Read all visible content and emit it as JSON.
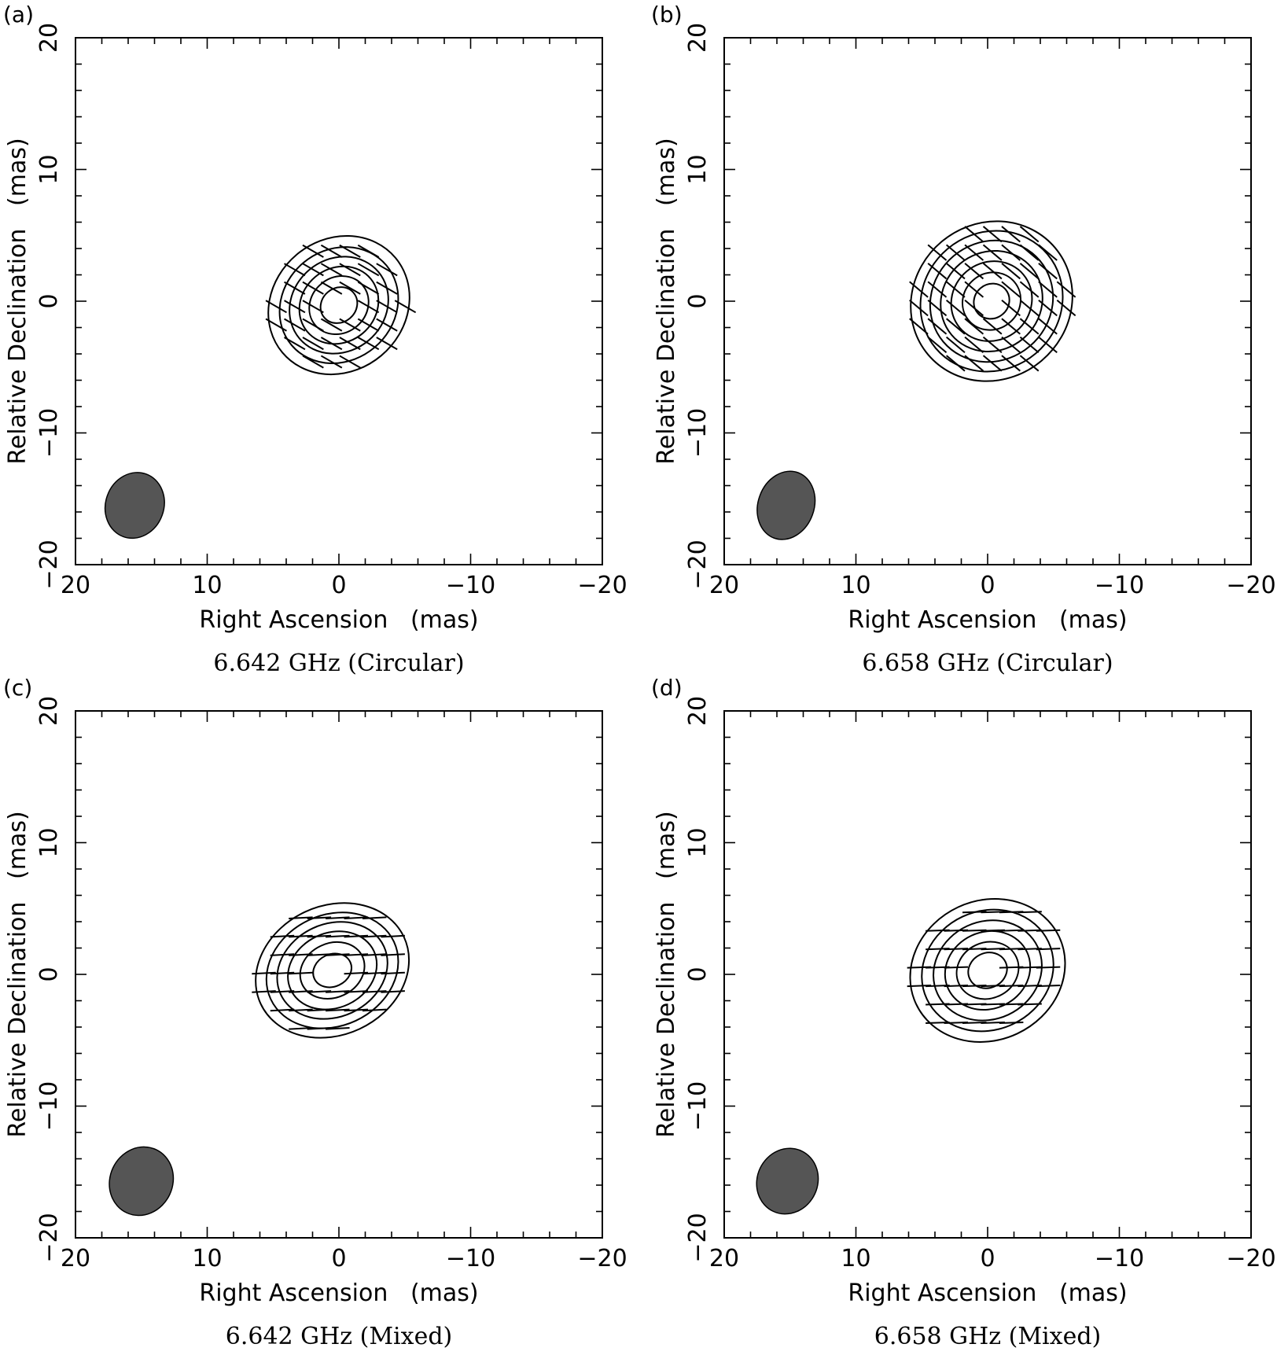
{
  "chart_data": [
    {
      "type": "contour",
      "panel": "(a)",
      "caption": "6.642 GHz (Circular)",
      "xlabel": "Right Ascension   (mas)",
      "ylabel": "Relative Declination   (mas)",
      "xlim": [
        20,
        -20
      ],
      "ylim": [
        -20,
        20
      ],
      "xticks": [
        20,
        10,
        0,
        -10,
        -20
      ],
      "yticks": [
        -20,
        -10,
        0,
        10,
        20
      ],
      "xtick_labels": [
        "20",
        "10",
        "0",
        "−10",
        "−20"
      ],
      "ytick_labels": [
        "−20",
        "−10",
        "0",
        "10",
        "20"
      ],
      "source": {
        "x": 0,
        "y": -0.3,
        "a": 5.6,
        "b": 5.0,
        "pa": -40
      },
      "contour_scales": [
        0.26,
        0.42,
        0.56,
        0.7,
        0.84,
        1.0
      ],
      "vector_angle_deg": -30,
      "beam": {
        "x": 15.5,
        "y": -15.5,
        "a": 2.6,
        "b": 2.2,
        "pa": 20,
        "color": "#555555"
      }
    },
    {
      "type": "contour",
      "panel": "(b)",
      "caption": "6.658 GHz (Circular)",
      "xlabel": "Right Ascension   (mas)",
      "ylabel": "Relative Declination   (mas)",
      "xlim": [
        20,
        -20
      ],
      "ylim": [
        -20,
        20
      ],
      "xticks": [
        20,
        10,
        0,
        -10,
        -20
      ],
      "yticks": [
        -20,
        -10,
        0,
        10,
        20
      ],
      "xtick_labels": [
        "20",
        "10",
        "0",
        "−10",
        "−20"
      ],
      "ytick_labels": [
        "−20",
        "−10",
        "0",
        "10",
        "20"
      ],
      "source": {
        "x": -0.3,
        "y": 0,
        "a": 6.3,
        "b": 5.9,
        "pa": -40
      },
      "contour_scales": [
        0.22,
        0.36,
        0.5,
        0.63,
        0.76,
        0.88,
        1.0
      ],
      "vector_angle_deg": -40,
      "beam": {
        "x": 15.3,
        "y": -15.5,
        "a": 2.5,
        "b": 2.3,
        "pa": 20,
        "color": "#555555"
      }
    },
    {
      "type": "contour",
      "panel": "(c)",
      "caption": "6.642 GHz (Mixed)",
      "xlabel": "Right Ascension   (mas)",
      "ylabel": "Relative Declination   (mas)",
      "xlim": [
        20,
        -20
      ],
      "ylim": [
        -20,
        20
      ],
      "xticks": [
        20,
        10,
        0,
        -10,
        -20
      ],
      "yticks": [
        -20,
        -10,
        0,
        10,
        20
      ],
      "xtick_labels": [
        "20",
        "10",
        "0",
        "−10",
        "−20"
      ],
      "ytick_labels": [
        "−20",
        "−10",
        "0",
        "10",
        "20"
      ],
      "source": {
        "x": 0.5,
        "y": 0.3,
        "a": 6.0,
        "b": 4.9,
        "pa": -25
      },
      "contour_scales": [
        0.25,
        0.42,
        0.58,
        0.72,
        0.86,
        1.0
      ],
      "vector_angle_deg": 3,
      "beam": {
        "x": 15.0,
        "y": -15.7,
        "a": 2.8,
        "b": 2.3,
        "pa": 25,
        "color": "#555555"
      }
    },
    {
      "type": "contour",
      "panel": "(d)",
      "caption": "6.658 GHz (Mixed)",
      "xlabel": "Right Ascension   (mas)",
      "ylabel": "Relative Declination   (mas)",
      "xlim": [
        20,
        -20
      ],
      "ylim": [
        -20,
        20
      ],
      "xticks": [
        20,
        10,
        0,
        -10,
        -20
      ],
      "yticks": [
        -20,
        -10,
        0,
        10,
        20
      ],
      "xtick_labels": [
        "20",
        "10",
        "0",
        "−10",
        "−20"
      ],
      "ytick_labels": [
        "−20",
        "−10",
        "0",
        "10",
        "20"
      ],
      "source": {
        "x": 0,
        "y": 0.3,
        "a": 6.0,
        "b": 5.3,
        "pa": -25
      },
      "contour_scales": [
        0.25,
        0.4,
        0.55,
        0.7,
        0.85,
        1.0
      ],
      "vector_angle_deg": 2,
      "beam": {
        "x": 15.2,
        "y": -15.7,
        "a": 2.7,
        "b": 2.2,
        "pa": 25,
        "color": "#555555"
      }
    }
  ]
}
